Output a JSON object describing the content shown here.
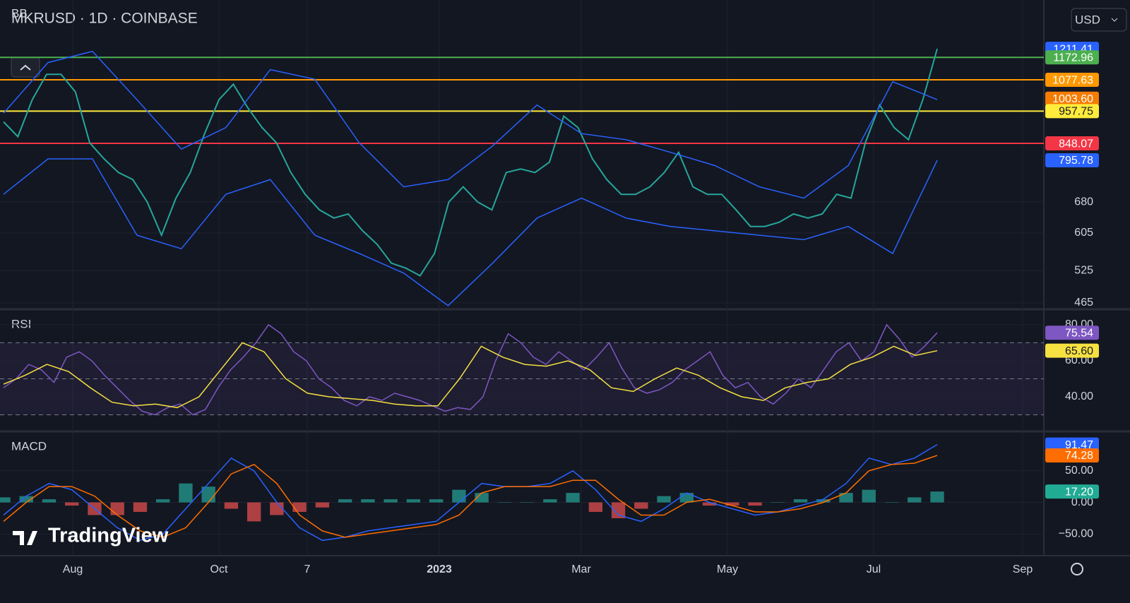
{
  "header": {
    "title": "MKRUSD · 1D · COINBASE",
    "currency": "USD"
  },
  "logo": "TradingView",
  "x_axis": {
    "labels": [
      "Aug",
      "Oct",
      "7",
      "2023",
      "Mar",
      "May",
      "Jul",
      "Sep"
    ]
  },
  "chart_data": [
    {
      "type": "line",
      "title": "BB",
      "log_scale": true,
      "grid": true,
      "ylim": [
        455,
        1456
      ],
      "yticks": [
        465,
        525,
        605,
        680
      ],
      "series": [
        {
          "color": "#26a69a",
          "values": [
            920,
            870,
            1000,
            1100,
            1100,
            1030,
            850,
            800,
            760,
            740,
            680,
            600,
            690,
            760,
            880,
            1000,
            1060,
            970,
            900,
            850,
            760,
            700,
            660,
            640,
            650,
            610,
            580,
            540,
            530,
            515,
            560,
            680,
            720,
            680,
            660,
            760,
            770,
            760,
            790,
            940,
            900,
            800,
            740,
            700,
            700,
            720,
            760,
            820,
            720,
            700,
            700,
            660,
            620,
            620,
            630,
            650,
            640,
            650,
            700,
            690,
            850,
            980,
            900,
            860,
            1000,
            1211.41
          ]
        },
        {
          "color": "#2962ff",
          "values": [
            950,
            1150,
            1200,
            1000,
            830,
            900,
            1120,
            1080,
            850,
            720,
            740,
            840,
            980,
            880,
            860,
            820,
            780,
            720,
            690,
            780,
            1070,
            1000
          ]
        },
        {
          "color": "#2962ff",
          "values": [
            700,
            800,
            800,
            600,
            570,
            700,
            740,
            600,
            560,
            520,
            460,
            540,
            640,
            690,
            640,
            620,
            610,
            600,
            590,
            620,
            560,
            795.78
          ]
        }
      ],
      "levels": [
        {
          "value": 1211.41,
          "color": "#2962ff",
          "line": false
        },
        {
          "value": 1172.96,
          "color": "#4caf50",
          "line": true
        },
        {
          "value": 1077.63,
          "color": "#ff9800",
          "line": true
        },
        {
          "value": 1003.6,
          "label": "1003.60",
          "color": "#f57c00",
          "line": false
        },
        {
          "value": 957.75,
          "color": "#ffeb3b",
          "line": true
        },
        {
          "value": 848.07,
          "color": "#f23645",
          "line": true
        },
        {
          "value": 795.78,
          "color": "#2962ff",
          "line": false
        }
      ]
    },
    {
      "type": "line",
      "title": "RSI",
      "grid": true,
      "ylim": [
        21.2,
        87.8
      ],
      "yticks": [
        {
          "value": 80,
          "label": "80.00"
        },
        {
          "value": 60,
          "label": "60.00"
        },
        {
          "value": 40,
          "label": "40.00"
        }
      ],
      "bands": [
        70,
        50,
        30
      ],
      "series": [
        {
          "color": "#7e57c2",
          "values": [
            45,
            50,
            58,
            55,
            48,
            62,
            65,
            60,
            52,
            45,
            38,
            32,
            30,
            34,
            36,
            30,
            33,
            45,
            55,
            62,
            70,
            80,
            75,
            65,
            60,
            50,
            45,
            38,
            35,
            40,
            38,
            42,
            40,
            38,
            35,
            32,
            34,
            33,
            40,
            60,
            75,
            70,
            62,
            58,
            65,
            60,
            55,
            62,
            70,
            56,
            45,
            42,
            44,
            48,
            55,
            60,
            65,
            52,
            45,
            48,
            40,
            36,
            42,
            50,
            45,
            55,
            65,
            70,
            60,
            65,
            80,
            72,
            62,
            68,
            75.54
          ]
        },
        {
          "color": "#f5e141",
          "values": [
            47,
            52,
            58,
            54,
            45,
            37,
            35,
            36,
            34,
            40,
            55,
            70,
            65,
            50,
            42,
            40,
            39,
            38,
            36,
            35,
            35,
            50,
            68,
            62,
            58,
            57,
            60,
            55,
            45,
            43,
            50,
            56,
            52,
            45,
            40,
            38,
            45,
            48,
            50,
            58,
            62,
            68,
            63,
            65.6
          ]
        }
      ],
      "levels": [
        {
          "value": 75.54,
          "color": "#7e57c2",
          "line": false
        },
        {
          "value": 65.6,
          "label": "65.60",
          "color": "#f5e141",
          "line": false
        }
      ]
    },
    {
      "type": "line",
      "title": "MACD",
      "grid": true,
      "ylim": [
        -82,
        110
      ],
      "yticks": [
        {
          "value": 50,
          "label": "50.00"
        },
        {
          "value": 0,
          "label": "0.00"
        },
        {
          "value": -50,
          "label": "−50.00"
        }
      ],
      "series": [
        {
          "color": "#2962ff",
          "values": [
            -20,
            10,
            30,
            20,
            -10,
            -40,
            -60,
            -50,
            -10,
            30,
            70,
            50,
            0,
            -40,
            -60,
            -55,
            -45,
            -40,
            -35,
            -30,
            0,
            30,
            25,
            25,
            30,
            50,
            20,
            -20,
            -30,
            -10,
            15,
            0,
            -10,
            -20,
            -15,
            -5,
            5,
            30,
            70,
            60,
            70,
            91.47
          ]
        },
        {
          "color": "#ff6d00",
          "values": [
            -30,
            0,
            25,
            25,
            10,
            -20,
            -45,
            -55,
            -40,
            0,
            45,
            60,
            30,
            -20,
            -45,
            -55,
            -50,
            -45,
            -40,
            -35,
            -20,
            15,
            25,
            25,
            25,
            35,
            35,
            5,
            -20,
            -20,
            0,
            5,
            -5,
            -15,
            -15,
            -10,
            0,
            15,
            50,
            60,
            62,
            74.28
          ]
        }
      ],
      "histogram": {
        "color": "#26a69a",
        "negative_color": "#ef5350",
        "values": [
          8,
          10,
          5,
          -5,
          -20,
          -20,
          -15,
          5,
          30,
          25,
          -10,
          -30,
          -20,
          -15,
          -8,
          5,
          5,
          5,
          5,
          5,
          20,
          15,
          0,
          0,
          5,
          15,
          -15,
          -25,
          -10,
          10,
          15,
          -5,
          -5,
          -5,
          0,
          5,
          5,
          15,
          20,
          0,
          8,
          17.2
        ]
      },
      "levels": [
        {
          "value": 91.47,
          "color": "#2962ff",
          "line": false
        },
        {
          "value": 74.28,
          "color": "#ff6d00",
          "line": false
        },
        {
          "value": 17.2,
          "label": "17.20",
          "color": "#22ab94",
          "line": false
        }
      ]
    }
  ]
}
